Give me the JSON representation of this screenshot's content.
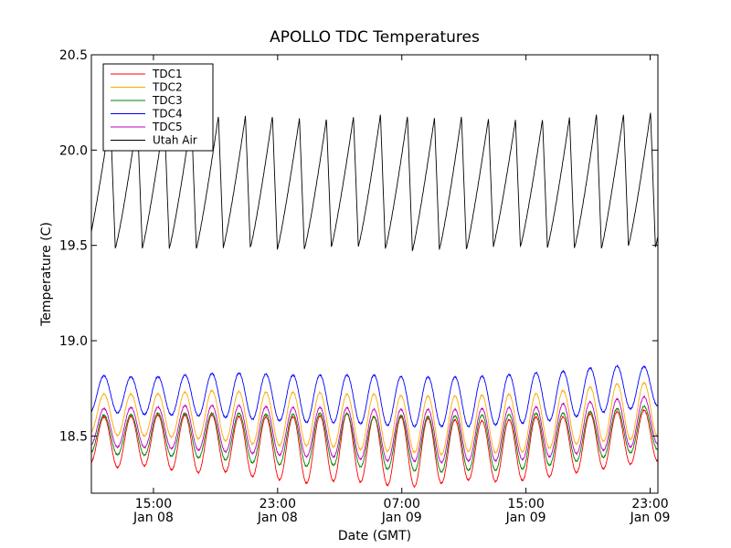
{
  "chart_data": {
    "type": "line",
    "title": "APOLLO TDC Temperatures",
    "xlabel": "Date (GMT)",
    "ylabel": "Temperature (C)",
    "xlim": [
      11.0,
      47.5
    ],
    "ylim": [
      18.2,
      20.5
    ],
    "x_unit": "hours since 2008-01-08 00:00 GMT (illustrative reference)",
    "x_ticks": [
      {
        "x": 15,
        "line1": "15:00",
        "line2": "Jan 08"
      },
      {
        "x": 23,
        "line1": "23:00",
        "line2": "Jan 08"
      },
      {
        "x": 31,
        "line1": "07:00",
        "line2": "Jan 09"
      },
      {
        "x": 39,
        "line1": "15:00",
        "line2": "Jan 09"
      },
      {
        "x": 47,
        "line1": "23:00",
        "line2": "Jan 09"
      }
    ],
    "y_ticks": [
      {
        "value": 18.5,
        "label": "18.5"
      },
      {
        "value": 19.0,
        "label": "19.0"
      },
      {
        "value": 19.5,
        "label": "19.5"
      },
      {
        "value": 20.0,
        "label": "20.0"
      },
      {
        "value": 20.5,
        "label": "20.5"
      }
    ],
    "grid": false,
    "legend_position": "top-left",
    "series": [
      {
        "name": "TDC1",
        "color": "#ff0000",
        "period_hours": 1.74,
        "min": [
          18.36,
          18.33,
          18.35,
          18.3,
          18.32,
          18.29,
          18.27,
          18.25,
          18.27,
          18.25,
          18.23,
          18.25,
          18.27,
          18.26,
          18.27,
          18.3,
          18.32,
          18.35,
          18.37
        ],
        "max": [
          18.6,
          18.6,
          18.61,
          18.61,
          18.61,
          18.6,
          18.6,
          18.6,
          18.62,
          18.6,
          18.6,
          18.59,
          18.58,
          18.58,
          18.6,
          18.6,
          18.62,
          18.63,
          18.64
        ]
      },
      {
        "name": "TDC2",
        "color": "#ffaa00",
        "period_hours": 1.74,
        "min": [
          18.52,
          18.5,
          18.5,
          18.49,
          18.48,
          18.46,
          18.45,
          18.45,
          18.44,
          18.42,
          18.42,
          18.4,
          18.42,
          18.41,
          18.42,
          18.45,
          18.47,
          18.48,
          18.5
        ],
        "max": [
          18.72,
          18.72,
          18.72,
          18.73,
          18.74,
          18.73,
          18.73,
          18.73,
          18.72,
          18.72,
          18.71,
          18.71,
          18.71,
          18.72,
          18.72,
          18.74,
          18.76,
          18.78,
          18.78
        ]
      },
      {
        "name": "TDC3",
        "color": "#008000",
        "period_hours": 1.74,
        "min": [
          18.41,
          18.4,
          18.4,
          18.39,
          18.38,
          18.36,
          18.35,
          18.34,
          18.35,
          18.33,
          18.32,
          18.31,
          18.32,
          18.32,
          18.33,
          18.36,
          18.38,
          18.41,
          18.43
        ],
        "max": [
          18.61,
          18.61,
          18.62,
          18.62,
          18.62,
          18.62,
          18.61,
          18.62,
          18.62,
          18.6,
          18.61,
          18.6,
          18.61,
          18.61,
          18.62,
          18.62,
          18.63,
          18.65,
          18.66
        ]
      },
      {
        "name": "TDC4",
        "color": "#0000ff",
        "period_hours": 1.74,
        "min": [
          18.63,
          18.62,
          18.61,
          18.61,
          18.6,
          18.59,
          18.58,
          18.57,
          18.57,
          18.56,
          18.55,
          18.55,
          18.55,
          18.56,
          18.57,
          18.59,
          18.62,
          18.64,
          18.66
        ],
        "max": [
          18.82,
          18.81,
          18.81,
          18.82,
          18.83,
          18.83,
          18.82,
          18.82,
          18.82,
          18.82,
          18.81,
          18.81,
          18.81,
          18.82,
          18.83,
          18.84,
          18.86,
          18.87,
          18.86
        ]
      },
      {
        "name": "TDC5",
        "color": "#bf00bf",
        "period_hours": 1.74,
        "min": [
          18.45,
          18.44,
          18.44,
          18.43,
          18.42,
          18.41,
          18.4,
          18.39,
          18.39,
          18.37,
          18.37,
          18.36,
          18.37,
          18.37,
          18.38,
          18.4,
          18.42,
          18.44,
          18.46
        ],
        "max": [
          18.64,
          18.65,
          18.65,
          18.66,
          18.66,
          18.66,
          18.65,
          18.65,
          18.65,
          18.64,
          18.64,
          18.64,
          18.64,
          18.65,
          18.65,
          18.67,
          18.68,
          18.7,
          18.71
        ]
      },
      {
        "name": "Utah Air",
        "color": "#000000",
        "period_hours": 1.74,
        "min": [
          19.5,
          19.48,
          19.49,
          19.48,
          19.49,
          19.49,
          19.48,
          19.48,
          19.5,
          19.49,
          19.47,
          19.48,
          19.48,
          19.5,
          19.49,
          19.49,
          19.48,
          19.5,
          19.49
        ],
        "max": [
          20.2,
          20.16,
          20.17,
          20.17,
          20.18,
          20.18,
          20.18,
          20.16,
          20.17,
          20.19,
          20.18,
          20.17,
          20.18,
          20.16,
          20.16,
          20.17,
          20.19,
          20.19,
          20.2
        ]
      }
    ]
  }
}
